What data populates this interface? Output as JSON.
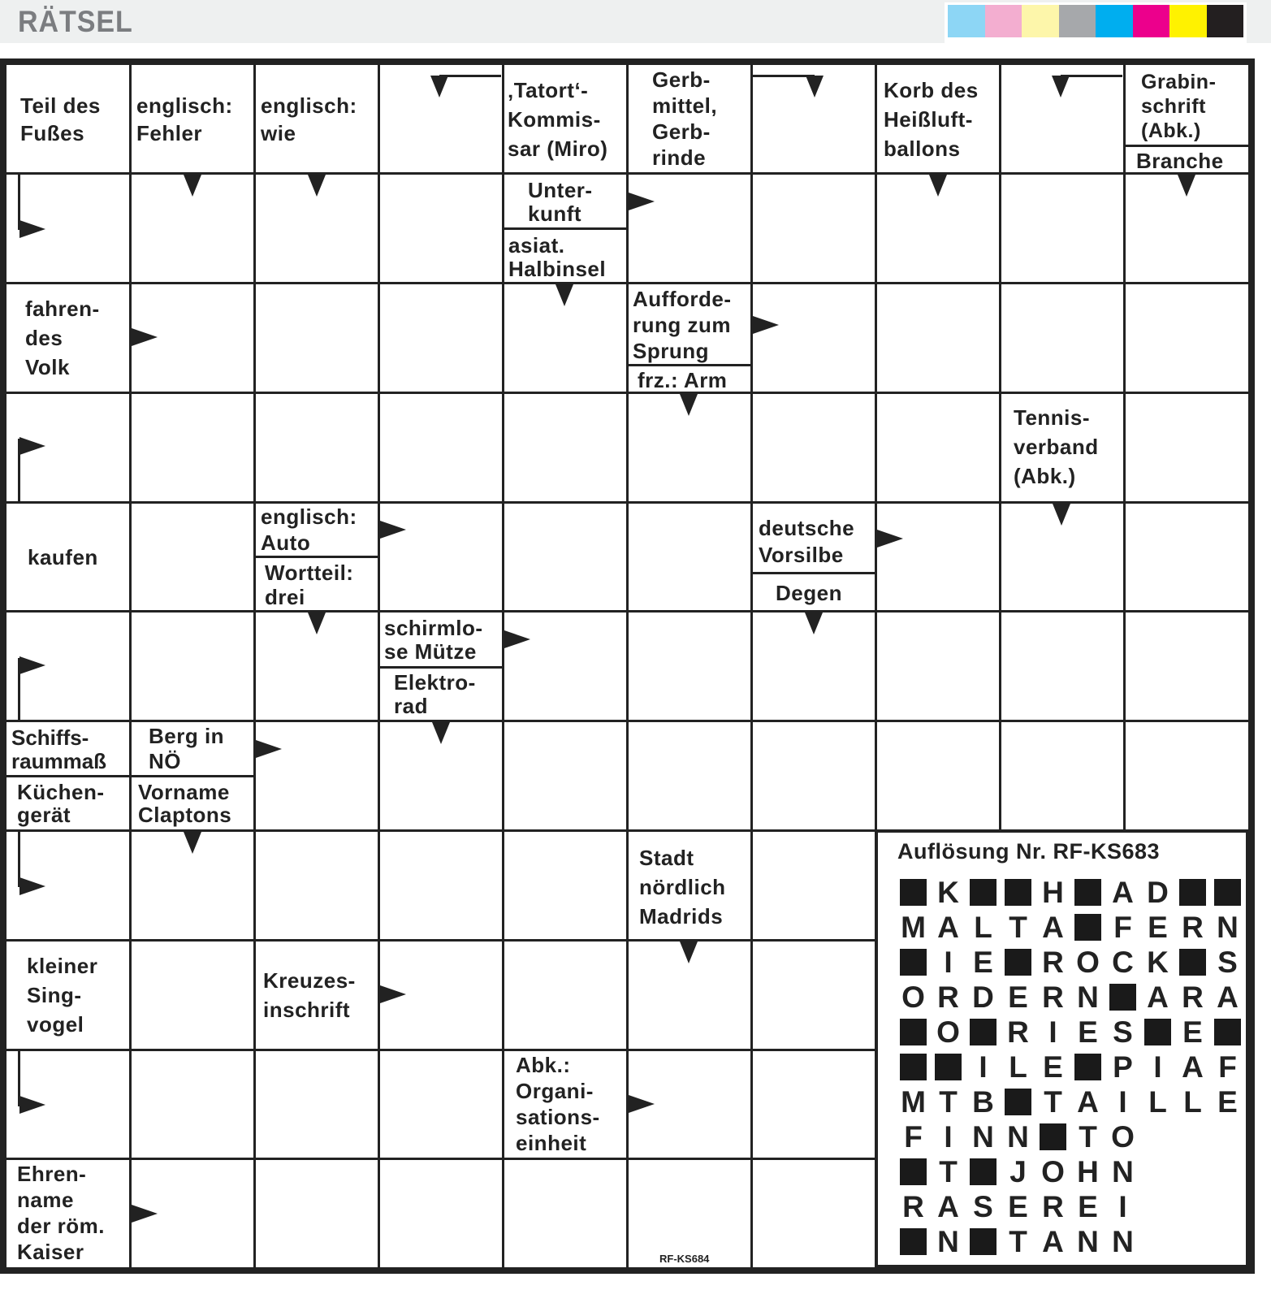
{
  "header": {
    "title": "RÄTSEL",
    "color_bar": [
      "#8dd6f5",
      "#f3aed0",
      "#fdf6aa",
      "#a6a8ab",
      "#00aeef",
      "#ec008c",
      "#fff200",
      "#231f20"
    ]
  },
  "clues": {
    "teil_des_fusses": "Teil des\nFußes",
    "englisch_fehler": "englisch:\nFehler",
    "englisch_wie": "englisch:\nwie",
    "tatort_kommissar": "‚Tatort‘-\nKommis-\nsar (Miro)",
    "gerbmittel": "Gerb-\nmittel,\nGerb-\nrinde",
    "korb_heissluftballon": "Korb des\nHeißluft-\nballons",
    "grabinschrift": "Grabin-\nschrift\n(Abk.)",
    "branche": "Branche",
    "unterkunft": "Unter-\nkunft",
    "asiat_halbinsel": "asiat.\nHalbinsel",
    "fahrendes_volk": "fahren-\ndes\nVolk",
    "aufforderung_sprung": "Aufforde-\nrung zum\nSprung",
    "frz_arm": "frz.: Arm",
    "tennisverband": "Tennis-\nverband\n(Abk.)",
    "kaufen": "kaufen",
    "englisch_auto": "englisch:\nAuto",
    "wortteil_drei": "Wortteil:\ndrei",
    "deutsche_vorsilbe": "deutsche\nVorsilbe",
    "degen": "Degen",
    "schirmlose_muetze": "schirmlo-\nse Mütze",
    "elektrorad": "Elektro-\nrad",
    "schiffsraummass": "Schiffs-\nraummaß",
    "kuechengeraet": "Küchen-\ngerät",
    "berg_in_noe": "Berg in\nNÖ",
    "vorname_claptons": "Vorname\nClaptons",
    "stadt_madrid": "Stadt\nnördlich\nMadrids",
    "kleiner_singvogel": "kleiner\nSing-\nvogel",
    "kreuzesinschrift": "Kreuzes-\ninschrift",
    "organisationseinheit": "Abk.:\nOrgani-\nsations-\neinheit",
    "ehrenname_kaiser": "Ehren-\nname\nder röm.\nKaiser"
  },
  "puzzle_code": "RF-KS684",
  "solution": {
    "title": "Auflösung Nr. RF-KS683",
    "rows": [
      "#K##H#AD##",
      "MALTA#FERN",
      "#IE#ROCK#S",
      "ORDERN#ARA",
      "#O#RIES#E#",
      "##ILE#PIAF",
      "MTB#TAILLE",
      "FINN#TO",
      "#T#JOHN",
      "RASEREI",
      "#N#TANN"
    ]
  }
}
